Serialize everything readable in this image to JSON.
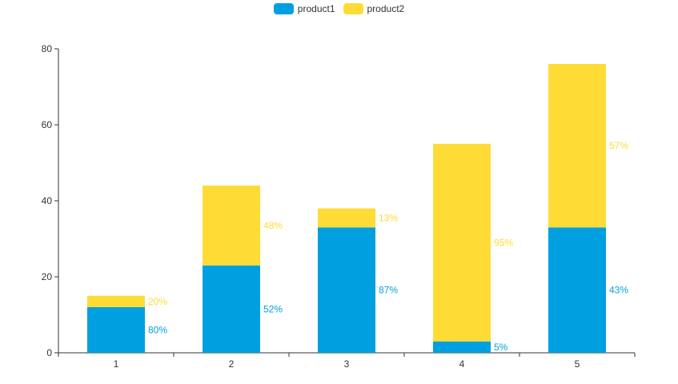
{
  "chart_data": {
    "type": "bar",
    "stacked": true,
    "categories": [
      "1",
      "2",
      "3",
      "4",
      "5"
    ],
    "series": [
      {
        "name": "product1",
        "color": "#00a0e0",
        "values": [
          12,
          23,
          33,
          3,
          33
        ],
        "labels": [
          "80%",
          "52%",
          "87%",
          "5%",
          "43%"
        ]
      },
      {
        "name": "product2",
        "color": "#ffdb36",
        "values": [
          3,
          21,
          5,
          52,
          43
        ],
        "labels": [
          "20%",
          "48%",
          "13%",
          "95%",
          "57%"
        ]
      }
    ],
    "ylim": [
      0,
      80
    ],
    "yticks": [
      "0",
      "20",
      "40",
      "60",
      "80"
    ],
    "legend_position": "top-center",
    "grid": false
  }
}
